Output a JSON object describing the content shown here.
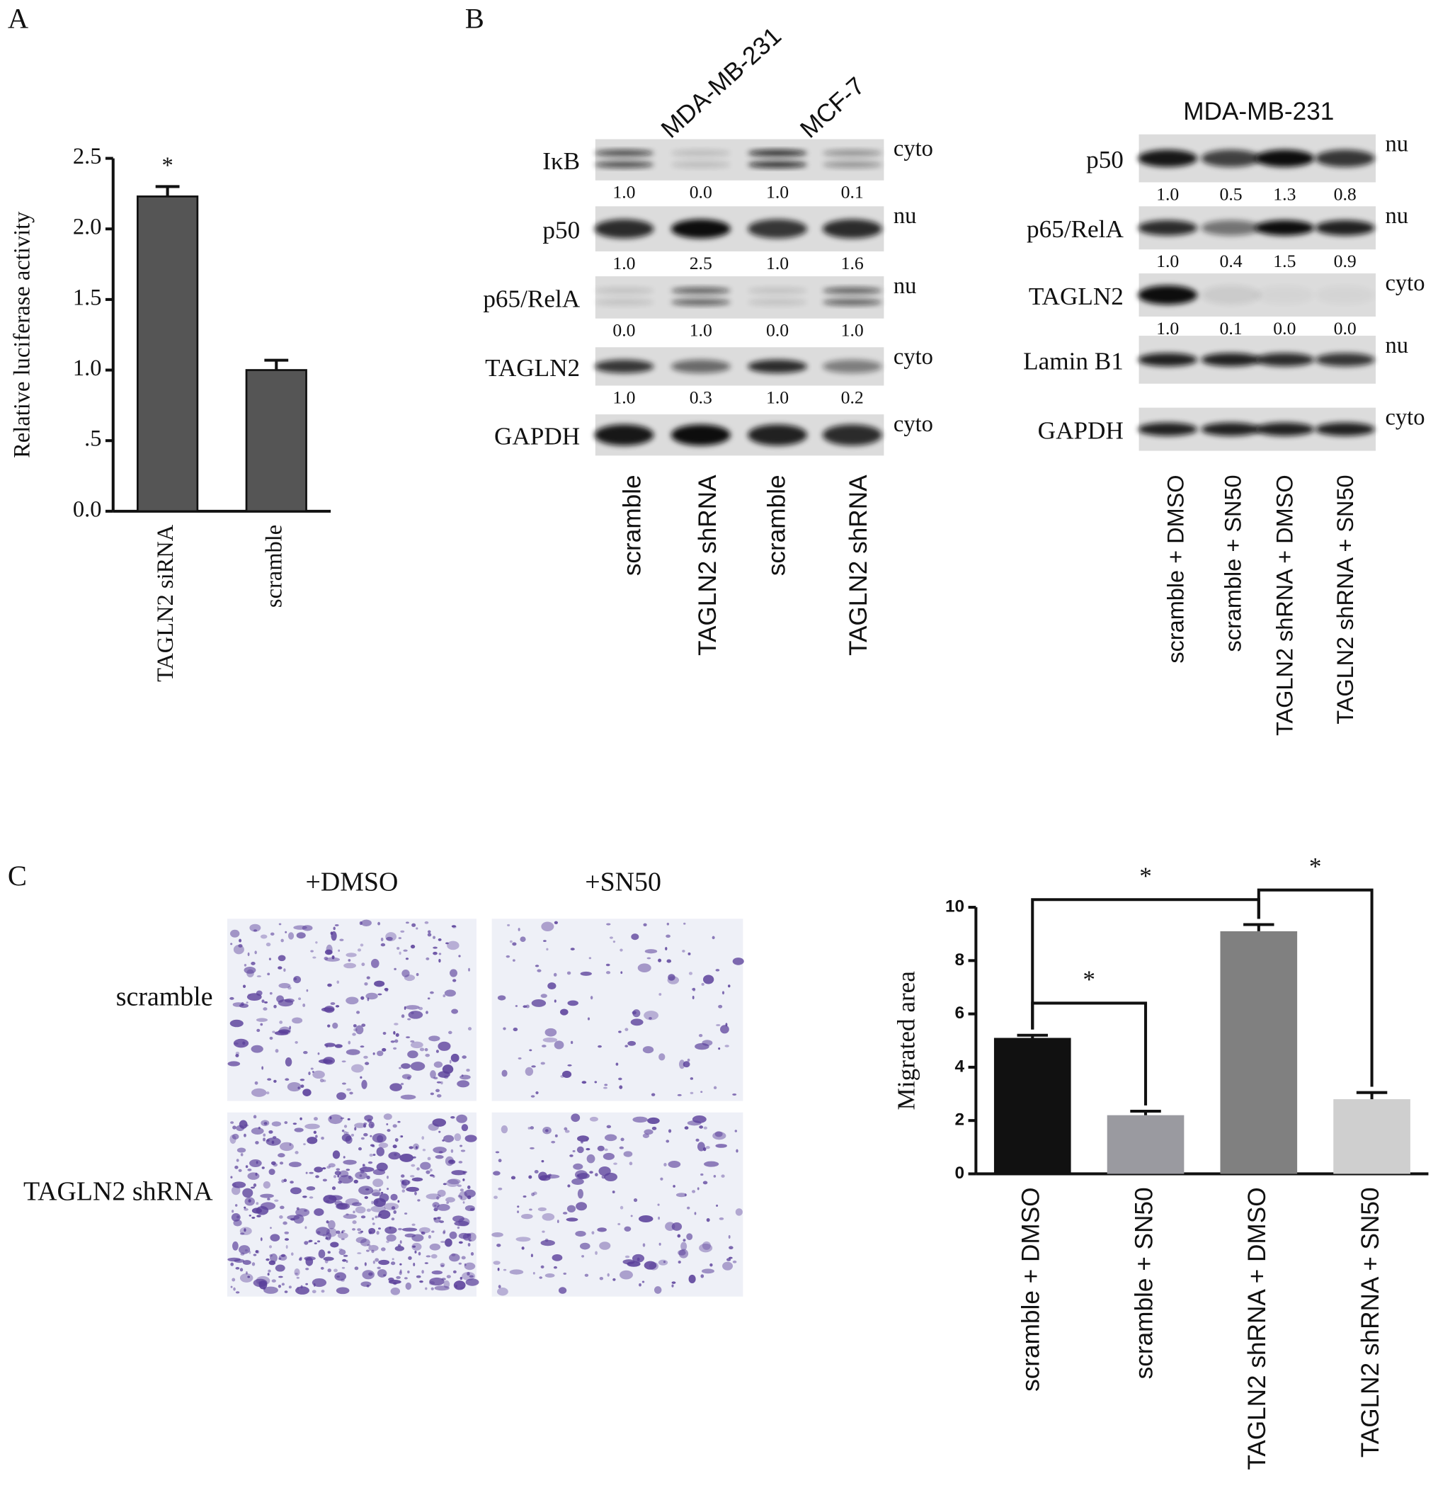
{
  "panels": {
    "a": "A",
    "b": "B",
    "c": "C"
  },
  "chart_data": [
    {
      "type": "bar",
      "ylabel": "Relative luciferase activity",
      "categories": [
        "TAGLN2 siRNA",
        "scramble"
      ],
      "values": [
        2.23,
        1.0
      ],
      "errors": [
        0.07,
        0.07
      ],
      "color": "#555555",
      "ylim": [
        0,
        2.5
      ],
      "yticks": [
        {
          "value": 0,
          "label": "0.0"
        },
        {
          "value": 0.5,
          "label": ".5"
        },
        {
          "value": 1,
          "label": "1.0"
        },
        1.5,
        {
          "value": 2,
          "label": "2.0"
        },
        2.5
      ],
      "annotations": [
        "*"
      ]
    },
    {
      "type": "bar",
      "ylabel": "Migrated area",
      "categories": [
        "scramble + DMSO",
        "scramble + SN50",
        "TAGLN2 shRNA + DMSO",
        "TAGLN2 shRNA + SN50"
      ],
      "values": [
        5.1,
        2.2,
        9.1,
        2.8
      ],
      "errors": [
        0.1,
        0.15,
        0.25,
        0.25
      ],
      "colors": [
        "#111111",
        "#9a9aa0",
        "#808080",
        "#cfcfcf"
      ],
      "ylim": [
        0,
        10
      ],
      "yticks": [
        0,
        2,
        4,
        6,
        8,
        10
      ],
      "annotations": [
        "*",
        "*",
        "*"
      ]
    }
  ],
  "blot_left": {
    "cell_lines": [
      "MDA-MB-231",
      "MCF-7"
    ],
    "rows": [
      {
        "protein": "IκB",
        "fraction": "cyto",
        "quant": [
          "1.0",
          "0.0",
          "1.0",
          "0.1"
        ]
      },
      {
        "protein": "p50",
        "fraction": "nu",
        "quant": [
          "1.0",
          "2.5",
          "1.0",
          "1.6"
        ]
      },
      {
        "protein": "p65/RelA",
        "fraction": "nu",
        "quant": [
          "0.0",
          "1.0",
          "0.0",
          "1.0"
        ]
      },
      {
        "protein": "TAGLN2",
        "fraction": "cyto",
        "quant": [
          "1.0",
          "0.3",
          "1.0",
          "0.2"
        ]
      },
      {
        "protein": "GAPDH",
        "fraction": "cyto"
      }
    ],
    "lanes": [
      "scramble",
      "TAGLN2 shRNA",
      "scramble",
      "TAGLN2 shRNA"
    ]
  },
  "blot_right": {
    "cell_line": "MDA-MB-231",
    "rows": [
      {
        "protein": "p50",
        "fraction": "nu",
        "quant": [
          "1.0",
          "0.5",
          "1.3",
          "0.8"
        ]
      },
      {
        "protein": "p65/RelA",
        "fraction": "nu",
        "quant": [
          "1.0",
          "0.4",
          "1.5",
          "0.9"
        ]
      },
      {
        "protein": "TAGLN2",
        "fraction": "cyto",
        "quant": [
          "1.0",
          "0.1",
          "0.0",
          "0.0"
        ]
      },
      {
        "protein": "Lamin B1",
        "fraction": "nu"
      },
      {
        "protein": "GAPDH",
        "fraction": "cyto"
      }
    ],
    "lanes": [
      "scramble + DMSO",
      "scramble + SN50",
      "TAGLN2 shRNA + DMSO",
      "TAGLN2 shRNA + SN50"
    ]
  },
  "migration_images": {
    "columns": [
      "+DMSO",
      "+SN50"
    ],
    "rows": [
      "scramble",
      "TAGLN2 shRNA"
    ]
  }
}
